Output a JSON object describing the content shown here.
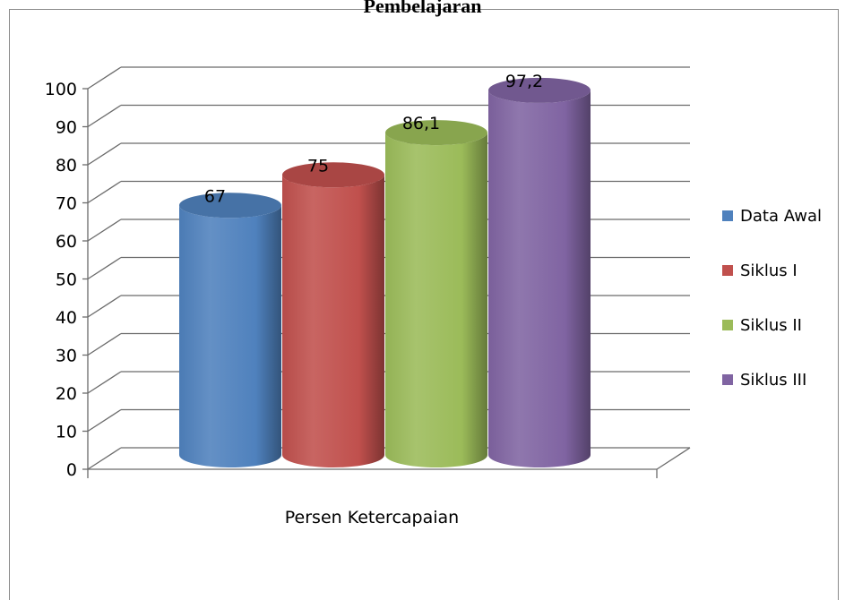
{
  "chart_data": {
    "type": "bar",
    "title": "Pembelajaran",
    "categories": [
      "Persen Ketercapaian"
    ],
    "xlabel": "",
    "ylabel": "",
    "ylim": [
      0,
      100
    ],
    "yticks": [
      0,
      10,
      20,
      30,
      40,
      50,
      60,
      70,
      80,
      90,
      100
    ],
    "grid": true,
    "legend_position": "right",
    "style": "3d-cylinder",
    "series": [
      {
        "name": "Data Awal",
        "values": [
          67
        ],
        "label": "67",
        "color": "#4f81bd"
      },
      {
        "name": "Siklus I",
        "values": [
          75
        ],
        "label": "75",
        "color": "#c0504d"
      },
      {
        "name": "Siklus II",
        "values": [
          86.1
        ],
        "label": "86,1",
        "color": "#9bbb59"
      },
      {
        "name": "Siklus III",
        "values": [
          97.2
        ],
        "label": "97,2",
        "color": "#8064a2"
      }
    ]
  }
}
